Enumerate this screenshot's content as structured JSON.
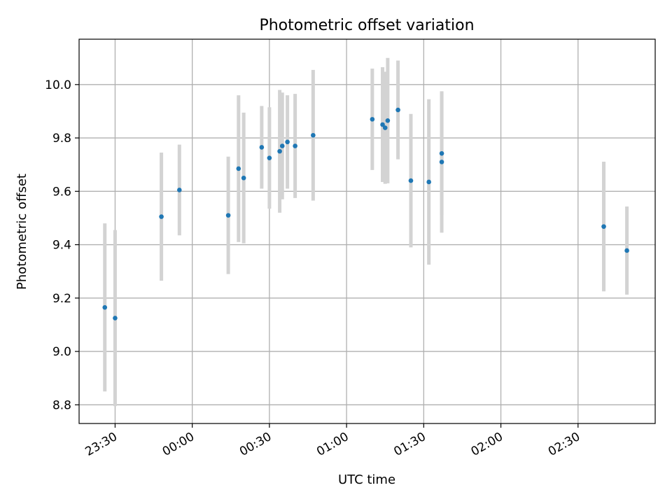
{
  "chart_data": {
    "type": "scatter",
    "title": "Photometric offset variation",
    "xlabel": "UTC time",
    "ylabel": "Photometric offset",
    "grid": true,
    "xlim": [
      "23:16",
      "03:00"
    ],
    "ylim": [
      8.73,
      10.17
    ],
    "x_ticks": [
      "23:30",
      "00:00",
      "00:30",
      "01:00",
      "01:30",
      "02:00",
      "02:30"
    ],
    "y_ticks": [
      "8.8",
      "9.0",
      "9.2",
      "9.4",
      "9.6",
      "9.8",
      "10.0"
    ],
    "colors": {
      "point": "#1f77b4",
      "errorbar": "#d3d3d3",
      "grid": "#b0b0b0"
    },
    "points": [
      {
        "x": "23:26",
        "y": 9.165,
        "err": 0.315
      },
      {
        "x": "23:30",
        "y": 9.125,
        "err": 0.33
      },
      {
        "x": "23:48",
        "y": 9.505,
        "err": 0.24
      },
      {
        "x": "23:55",
        "y": 9.605,
        "err": 0.17
      },
      {
        "x": "00:14",
        "y": 9.51,
        "err": 0.22
      },
      {
        "x": "00:18",
        "y": 9.685,
        "err": 0.275
      },
      {
        "x": "00:20",
        "y": 9.65,
        "err": 0.245
      },
      {
        "x": "00:27",
        "y": 9.765,
        "err": 0.155
      },
      {
        "x": "00:30",
        "y": 9.725,
        "err": 0.19
      },
      {
        "x": "00:34",
        "y": 9.75,
        "err": 0.23
      },
      {
        "x": "00:35",
        "y": 9.77,
        "err": 0.2
      },
      {
        "x": "00:37",
        "y": 9.785,
        "err": 0.175
      },
      {
        "x": "00:40",
        "y": 9.77,
        "err": 0.195
      },
      {
        "x": "00:47",
        "y": 9.81,
        "err": 0.245
      },
      {
        "x": "01:10",
        "y": 9.87,
        "err": 0.19
      },
      {
        "x": "01:14",
        "y": 9.85,
        "err": 0.215
      },
      {
        "x": "01:15",
        "y": 9.838,
        "err": 0.21
      },
      {
        "x": "01:16",
        "y": 9.865,
        "err": 0.235
      },
      {
        "x": "01:20",
        "y": 9.905,
        "err": 0.185
      },
      {
        "x": "01:25",
        "y": 9.64,
        "err": 0.25
      },
      {
        "x": "01:32",
        "y": 9.635,
        "err": 0.31
      },
      {
        "x": "01:37",
        "y": 9.742,
        "err": 0.23
      },
      {
        "x": "01:37",
        "y": 9.71,
        "err": 0.265
      },
      {
        "x": "02:40",
        "y": 9.468,
        "err": 0.243
      },
      {
        "x": "02:49",
        "y": 9.378,
        "err": 0.165
      }
    ]
  }
}
